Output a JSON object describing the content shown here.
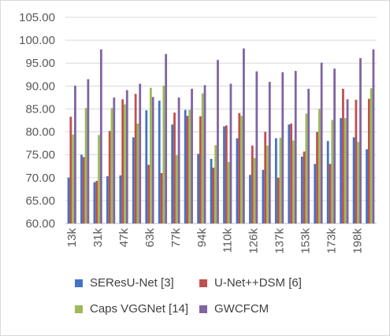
{
  "chart_data": {
    "type": "bar",
    "title": "",
    "xlabel": "",
    "ylabel": "",
    "ylim": [
      60,
      105
    ],
    "y_ticks": [
      "60.00",
      "65.00",
      "70.00",
      "75.00",
      "80.00",
      "85.00",
      "90.00",
      "95.00",
      "100.00",
      "105.00"
    ],
    "grid": true,
    "legend_position": "bottom",
    "categories": [
      "13k",
      "",
      "31k",
      "",
      "47k",
      "",
      "63k",
      "",
      "77k",
      "",
      "94k",
      "",
      "110k",
      "",
      "126k",
      "",
      "137k",
      "",
      "153k",
      "",
      "173k",
      "",
      "198k",
      ""
    ],
    "series": [
      {
        "name": "SEResU-Net [3]",
        "color": "#4472C4",
        "values": [
          70.0,
          75.0,
          69.0,
          70.3,
          70.5,
          78.8,
          84.7,
          86.8,
          81.6,
          84.8,
          75.2,
          74.1,
          81.2,
          78.6,
          70.6,
          71.7,
          78.6,
          81.6,
          74.6,
          73.0,
          78.0,
          83.0,
          78.8,
          76.2
        ]
      },
      {
        "name": "U-Net++DSM [6]",
        "color": "#C0504D",
        "values": [
          83.3,
          74.5,
          69.3,
          80.2,
          87.1,
          88.3,
          72.8,
          71.0,
          84.2,
          83.5,
          83.4,
          72.2,
          81.4,
          84.1,
          77.0,
          80.0,
          70.0,
          81.8,
          75.7,
          80.0,
          73.0,
          89.4,
          87.0,
          87.2
        ]
      },
      {
        "name": "Caps VGGNet [14]",
        "color": "#9BBB59",
        "values": [
          79.4,
          85.2,
          79.3,
          85.2,
          86.0,
          81.8,
          89.6,
          90.1,
          74.9,
          84.8,
          88.4,
          77.1,
          73.4,
          83.5,
          74.3,
          77.0,
          78.7,
          78.1,
          84.0,
          85.0,
          82.6,
          83.0,
          77.8,
          89.5
        ]
      },
      {
        "name": "GWCFCM",
        "color": "#8064A2",
        "values": [
          90.1,
          91.5,
          98.0,
          87.5,
          89.1,
          90.5,
          87.6,
          97.0,
          87.5,
          89.4,
          90.2,
          95.7,
          90.5,
          98.2,
          93.2,
          90.9,
          93.0,
          93.3,
          89.4,
          95.1,
          93.8,
          87.1,
          96.1,
          98.0
        ]
      }
    ]
  }
}
